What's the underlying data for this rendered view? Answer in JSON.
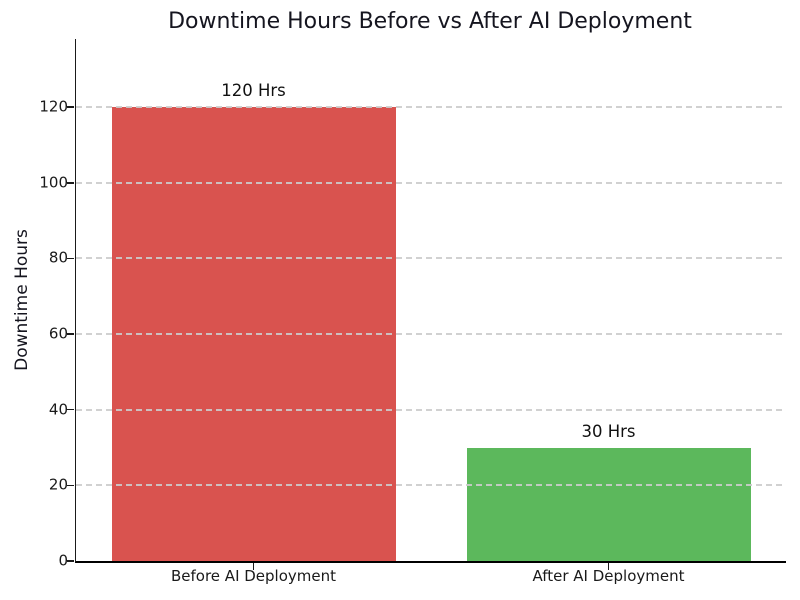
{
  "figure": {
    "background": "#ffffff",
    "text_color": "#15151f"
  },
  "chart_data": {
    "type": "bar",
    "title": "Downtime Hours Before vs After AI Deployment",
    "xlabel": "",
    "ylabel": "Downtime Hours",
    "categories": [
      "Before AI Deployment",
      "After AI Deployment"
    ],
    "values": [
      120,
      30
    ],
    "bar_value_labels": [
      "120 Hrs",
      "30 Hrs"
    ],
    "bar_colors": [
      "#d9534f",
      "#5cb85c"
    ],
    "yticks": [
      0,
      20,
      40,
      60,
      80,
      100,
      120
    ],
    "ylim": [
      0,
      138
    ],
    "bar_width_fraction": 0.8,
    "grid": {
      "axis": "y",
      "style": "dashed",
      "color": "#cccccc"
    },
    "legend": "none",
    "spines": {
      "top": false,
      "right": false,
      "left": true,
      "bottom": true
    }
  }
}
